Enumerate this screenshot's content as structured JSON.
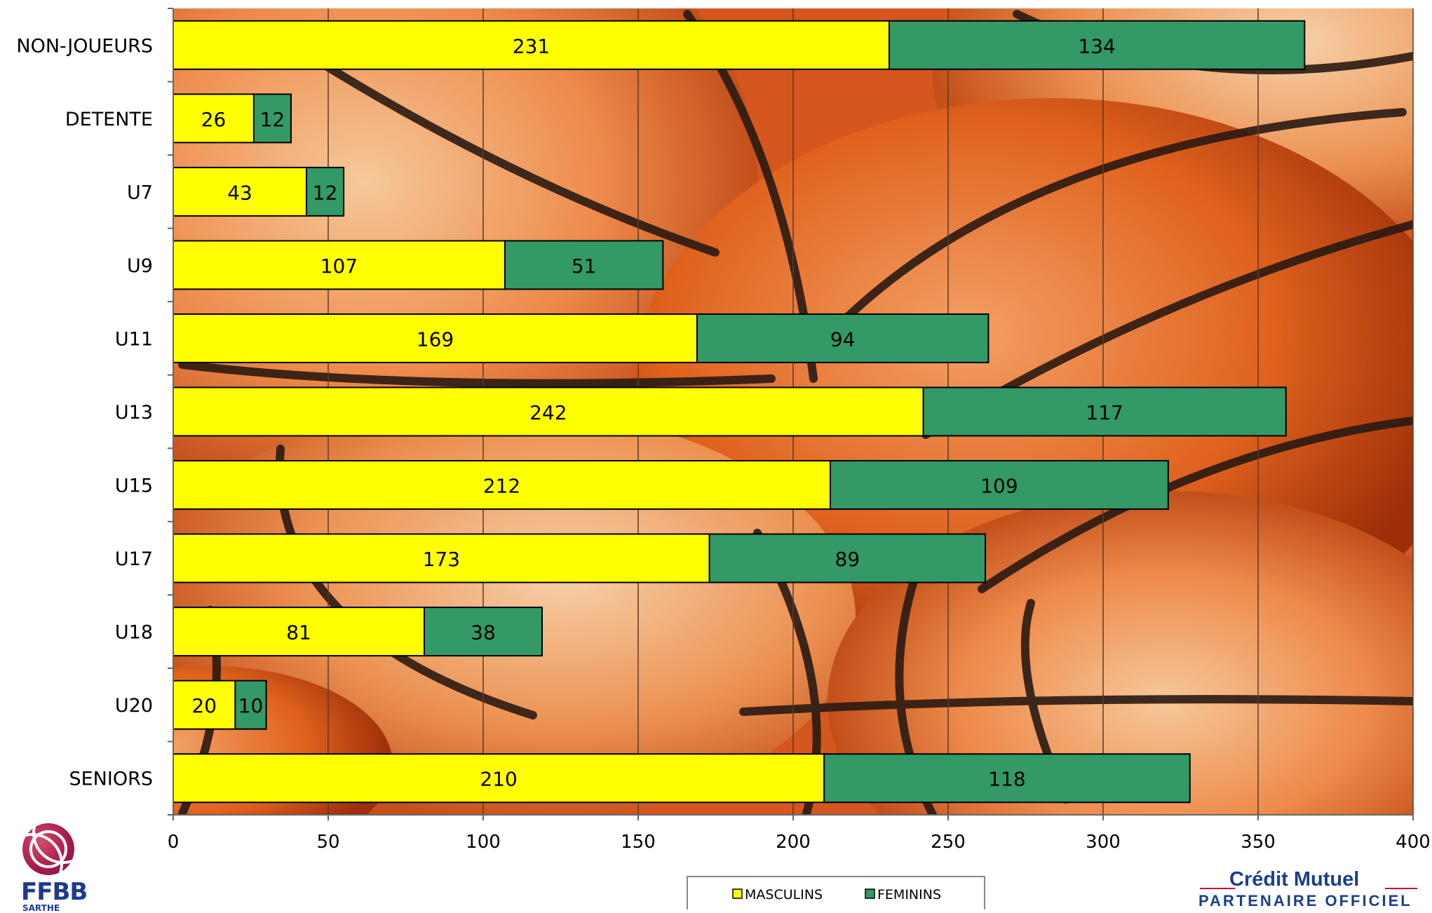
{
  "chart_data": {
    "type": "bar",
    "orientation": "horizontal",
    "stacked": true,
    "categories": [
      "NON-JOUEURS",
      "DETENTE",
      "U7",
      "U9",
      "U11",
      "U13",
      "U15",
      "U17",
      "U18",
      "U20",
      "SENIORS"
    ],
    "series": [
      {
        "name": "MASCULINS",
        "values": [
          231,
          26,
          43,
          107,
          169,
          242,
          212,
          173,
          81,
          20,
          210
        ],
        "color": "#ffff00"
      },
      {
        "name": "FEMININS",
        "values": [
          134,
          12,
          12,
          51,
          94,
          117,
          109,
          89,
          38,
          10,
          118
        ],
        "color": "#339966"
      }
    ],
    "xlim": [
      0,
      400
    ],
    "xticks": [
      0,
      50,
      100,
      150,
      200,
      250,
      300,
      350,
      400
    ],
    "grid": true,
    "legend_position": "bottom",
    "background": "basketball photo"
  },
  "logos": {
    "left": {
      "text": "FFBB",
      "sub": "SARTHE"
    },
    "right": {
      "name": "Crédit Mutuel",
      "sub": "PARTENAIRE OFFICIEL"
    }
  }
}
